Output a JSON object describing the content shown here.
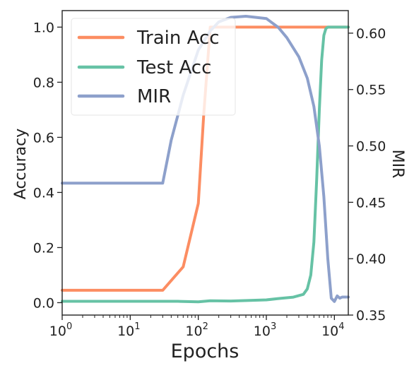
{
  "chart_data": {
    "type": "line",
    "xlabel": "Epochs",
    "ylabel_left": "Accuracy",
    "ylabel_right": "MIR",
    "x_scale": "log",
    "xlim": [
      1,
      16000
    ],
    "ylim_left": [
      -0.045,
      1.06
    ],
    "ylim_right": [
      0.35,
      0.62
    ],
    "x_ticks": [
      {
        "base": "10",
        "exp": "0",
        "value": 1
      },
      {
        "base": "10",
        "exp": "1",
        "value": 10
      },
      {
        "base": "10",
        "exp": "2",
        "value": 100
      },
      {
        "base": "10",
        "exp": "3",
        "value": 1000
      },
      {
        "base": "10",
        "exp": "4",
        "value": 10000
      }
    ],
    "y_ticks_left": [
      "0.0",
      "0.2",
      "0.4",
      "0.6",
      "0.8",
      "1.0"
    ],
    "y_ticks_right": [
      "0.35",
      "0.40",
      "0.45",
      "0.50",
      "0.55",
      "0.60"
    ],
    "legend": {
      "position": "top-left",
      "entries": [
        "Train Acc",
        "Test Acc",
        "MIR"
      ]
    },
    "grid": false,
    "series": [
      {
        "name": "Train Acc",
        "color": "#fc8d62",
        "axis": "left",
        "x": [
          1,
          30,
          60,
          100,
          120,
          150,
          16000
        ],
        "y": [
          0.045,
          0.045,
          0.13,
          0.36,
          0.68,
          1.0,
          1.0
        ]
      },
      {
        "name": "Test Acc",
        "color": "#66c2a5",
        "axis": "left",
        "x": [
          1,
          50,
          100,
          150,
          300,
          1000,
          1500,
          2500,
          3500,
          4000,
          4500,
          5000,
          5500,
          6000,
          6500,
          7000,
          7500,
          8000,
          16000
        ],
        "y": [
          0.005,
          0.005,
          0.003,
          0.007,
          0.006,
          0.01,
          0.015,
          0.02,
          0.03,
          0.05,
          0.1,
          0.22,
          0.45,
          0.7,
          0.88,
          0.97,
          0.995,
          1.0,
          1.0
        ]
      },
      {
        "name": "MIR",
        "color": "#8da0cb",
        "axis": "right",
        "x": [
          1,
          30,
          40,
          60,
          100,
          150,
          200,
          300,
          500,
          1000,
          1500,
          2000,
          3000,
          4000,
          5000,
          6000,
          7000,
          8000,
          9000,
          10000,
          11000,
          12000,
          13000,
          14000,
          16000
        ],
        "y": [
          0.467,
          0.467,
          0.505,
          0.545,
          0.585,
          0.602,
          0.61,
          0.614,
          0.615,
          0.613,
          0.605,
          0.596,
          0.579,
          0.56,
          0.535,
          0.5,
          0.455,
          0.4,
          0.365,
          0.362,
          0.367,
          0.365,
          0.366,
          0.366,
          0.366
        ]
      }
    ]
  }
}
